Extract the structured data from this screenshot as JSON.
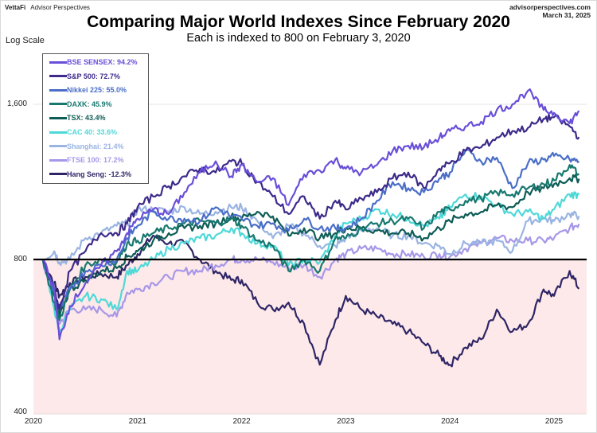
{
  "header": {
    "brand": "VettaFi",
    "brand_sub": "Advisor Perspectives",
    "site": "advisorperspectives.com",
    "date": "March 31, 2025"
  },
  "chart_data": {
    "type": "line",
    "title": "Comparing Major World Indexes Since February 2020",
    "subtitle": "Each is indexed to 800 on February 3, 2020",
    "scale_label": "Log Scale",
    "xlabel": "",
    "ylabel": "",
    "yscale": "log",
    "ylim": [
      400,
      2000
    ],
    "xlim": [
      2020.0,
      2025.3
    ],
    "y_ticks": [
      {
        "value": 400,
        "label": "400"
      },
      {
        "value": 800,
        "label": "800"
      },
      {
        "value": 1600,
        "label": "1,600"
      }
    ],
    "x_ticks": [
      {
        "value": 2020,
        "label": "2020"
      },
      {
        "value": 2021,
        "label": "2021"
      },
      {
        "value": 2022,
        "label": "2022"
      },
      {
        "value": 2023,
        "label": "2023"
      },
      {
        "value": 2024,
        "label": "2024"
      },
      {
        "value": 2025,
        "label": "2025"
      }
    ],
    "baseline": 800,
    "below_baseline_fill": "#fde9e9",
    "legend_position": "top-left",
    "x": [
      2020.09,
      2020.2,
      2020.25,
      2020.35,
      2020.5,
      2020.65,
      2020.8,
      2020.9,
      2021.0,
      2021.15,
      2021.3,
      2021.45,
      2021.6,
      2021.75,
      2021.9,
      2022.0,
      2022.15,
      2022.3,
      2022.45,
      2022.6,
      2022.75,
      2022.9,
      2023.0,
      2023.15,
      2023.3,
      2023.45,
      2023.6,
      2023.75,
      2023.9,
      2024.0,
      2024.15,
      2024.3,
      2024.45,
      2024.6,
      2024.75,
      2024.9,
      2025.0,
      2025.15,
      2025.24
    ],
    "series": [
      {
        "name": "BSE SENSEX",
        "label": "BSE SENSEX: 94.2%",
        "color": "#6a4fd8",
        "values": [
          800,
          700,
          560,
          650,
          720,
          780,
          830,
          900,
          960,
          1000,
          980,
          1080,
          1180,
          1240,
          1160,
          1220,
          1130,
          1150,
          1020,
          1170,
          1190,
          1250,
          1200,
          1180,
          1220,
          1300,
          1330,
          1320,
          1380,
          1420,
          1450,
          1480,
          1560,
          1600,
          1700,
          1560,
          1540,
          1470,
          1554
        ]
      },
      {
        "name": "S&P 500",
        "label": "S&P 500: 72.7%",
        "color": "#3d2a8a",
        "values": [
          800,
          700,
          640,
          760,
          830,
          900,
          900,
          940,
          1010,
          1060,
          1110,
          1160,
          1200,
          1180,
          1240,
          1230,
          1130,
          1060,
          980,
          1060,
          960,
          1040,
          1000,
          1050,
          1080,
          1150,
          1180,
          1100,
          1200,
          1230,
          1300,
          1320,
          1380,
          1420,
          1440,
          1500,
          1510,
          1450,
          1382
        ]
      },
      {
        "name": "Nikkei 225",
        "label": "Nikkei 225: 55.0%",
        "color": "#4a6ec8",
        "values": [
          800,
          690,
          640,
          700,
          760,
          780,
          800,
          880,
          930,
          990,
          960,
          960,
          950,
          1010,
          970,
          960,
          930,
          940,
          910,
          960,
          920,
          920,
          920,
          960,
          1040,
          1130,
          1100,
          1080,
          1150,
          1180,
          1300,
          1240,
          1260,
          1100,
          1230,
          1250,
          1270,
          1250,
          1240
        ]
      },
      {
        "name": "DAXK",
        "label": "DAXK: 45.9%",
        "color": "#17786f",
        "values": [
          800,
          660,
          610,
          700,
          780,
          800,
          790,
          860,
          870,
          900,
          920,
          940,
          950,
          940,
          960,
          930,
          870,
          850,
          760,
          800,
          760,
          880,
          880,
          920,
          940,
          950,
          960,
          920,
          990,
          1000,
          1040,
          1050,
          1080,
          1070,
          1100,
          1120,
          1140,
          1220,
          1167
        ]
      },
      {
        "name": "TSX",
        "label": "TSX: 43.4%",
        "color": "#0e5c56",
        "values": [
          800,
          680,
          620,
          700,
          730,
          760,
          770,
          810,
          830,
          870,
          900,
          920,
          930,
          940,
          970,
          960,
          990,
          970,
          890,
          920,
          880,
          900,
          920,
          920,
          910,
          900,
          900,
          880,
          920,
          950,
          980,
          990,
          1020,
          1010,
          1080,
          1100,
          1120,
          1150,
          1147
        ]
      },
      {
        "name": "CAC 40",
        "label": "CAC 40: 33.6%",
        "color": "#4fd8d8",
        "values": [
          800,
          640,
          580,
          640,
          680,
          670,
          640,
          760,
          760,
          800,
          840,
          860,
          880,
          890,
          920,
          900,
          860,
          850,
          780,
          800,
          790,
          890,
          940,
          960,
          1000,
          980,
          960,
          930,
          960,
          1010,
          1070,
          1060,
          1020,
          980,
          990,
          960,
          1000,
          1070,
          1069
        ]
      },
      {
        "name": "Shanghai",
        "label": "Shanghai: 21.4%",
        "color": "#9ab4e2",
        "values": [
          800,
          830,
          790,
          800,
          880,
          900,
          930,
          940,
          1000,
          1000,
          990,
          1010,
          980,
          990,
          1010,
          1010,
          950,
          880,
          930,
          900,
          850,
          850,
          880,
          910,
          920,
          890,
          890,
          860,
          850,
          820,
          860,
          860,
          870,
          830,
          950,
          960,
          950,
          980,
          971
        ]
      },
      {
        "name": "FTSE 100",
        "label": "FTSE 100: 17.2%",
        "color": "#a797e8",
        "values": [
          800,
          650,
          600,
          640,
          640,
          640,
          620,
          690,
          700,
          720,
          740,
          760,
          760,
          780,
          800,
          800,
          800,
          790,
          770,
          780,
          740,
          800,
          820,
          840,
          840,
          820,
          820,
          810,
          820,
          810,
          840,
          860,
          880,
          870,
          870,
          870,
          880,
          920,
          938
        ]
      },
      {
        "name": "Hang Seng",
        "label": "Hang Seng: -12.3%",
        "color": "#2e2566",
        "values": [
          800,
          720,
          680,
          720,
          740,
          750,
          740,
          780,
          820,
          890,
          860,
          860,
          800,
          760,
          730,
          730,
          660,
          640,
          660,
          600,
          500,
          610,
          680,
          640,
          620,
          600,
          580,
          550,
          520,
          500,
          540,
          560,
          640,
          580,
          600,
          700,
          680,
          760,
          702
        ]
      }
    ]
  }
}
